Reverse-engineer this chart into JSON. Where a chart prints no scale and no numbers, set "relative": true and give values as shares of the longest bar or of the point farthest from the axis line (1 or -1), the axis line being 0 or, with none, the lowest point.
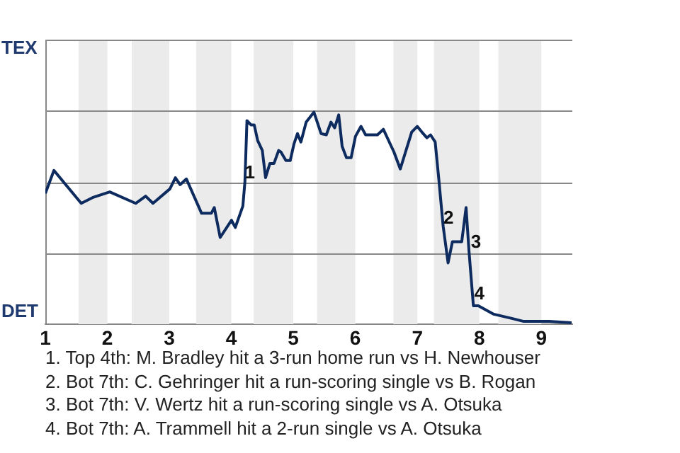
{
  "chart_data": {
    "type": "line",
    "relative": true,
    "x": [
      1,
      1.139,
      1.579,
      1.761,
      2.039,
      2.457,
      2.618,
      2.736,
      3.009,
      3.098,
      3.173,
      3.275,
      3.52,
      3.677,
      3.725,
      3.82,
      4.003,
      4.064,
      4.186,
      4.219,
      4.252,
      4.317,
      4.369,
      4.425,
      4.5,
      4.552,
      4.622,
      4.688,
      4.763,
      4.8,
      4.88,
      4.95,
      5.012,
      5.067,
      5.122,
      5.207,
      5.332,
      5.447,
      5.532,
      5.607,
      5.667,
      5.732,
      5.787,
      5.857,
      5.932,
      6.002,
      6.091,
      6.166,
      6.357,
      6.452,
      6.623,
      6.725,
      6.909,
      6.998,
      7.073,
      7.154,
      7.213,
      7.288,
      7.346,
      7.416,
      7.496,
      7.566,
      7.716,
      7.786,
      7.834,
      7.904,
      7.984,
      8.233,
      8.525,
      8.717,
      9.125,
      9.488
    ],
    "series": [
      {
        "color": "#0d2b5e",
        "values": [
          0.617,
          0.725,
          0.57,
          0.597,
          0.624,
          0.57,
          0.604,
          0.57,
          0.638,
          0.691,
          0.658,
          0.685,
          0.523,
          0.523,
          0.55,
          0.409,
          0.49,
          0.456,
          0.557,
          0.671,
          0.96,
          0.94,
          0.94,
          0.866,
          0.819,
          0.691,
          0.758,
          0.758,
          0.819,
          0.812,
          0.772,
          0.772,
          0.852,
          0.899,
          0.859,
          0.953,
          1,
          0.899,
          0.893,
          0.953,
          0.926,
          0.987,
          0.839,
          0.785,
          0.785,
          0.886,
          0.933,
          0.893,
          0.893,
          0.919,
          0.812,
          0.732,
          0.906,
          0.933,
          0.906,
          0.879,
          0.893,
          0.859,
          0.685,
          0.463,
          0.289,
          0.389,
          0.389,
          0.55,
          0.342,
          0.087,
          0.087,
          0.047,
          0.027,
          0.013,
          0.013,
          0.007
        ]
      }
    ],
    "xlim": [
      1,
      9.5
    ],
    "xticks": [
      1,
      2,
      3,
      4,
      5,
      6,
      7,
      8,
      9
    ],
    "grid": false,
    "marker": "none",
    "line_style": "solid",
    "legend": false,
    "ref_lines": [
      {
        "axis": "y",
        "value": 0.336,
        "color": "#888888"
      },
      {
        "axis": "y",
        "value": 0.671,
        "color": "#888888"
      },
      {
        "axis": "y",
        "value": 1.007,
        "color": "#888888"
      },
      {
        "axis": "y",
        "value": 1.342,
        "color": "#888888"
      }
    ],
    "bands": [
      {
        "axis": "x",
        "from": 1.536,
        "to": 2,
        "color": "#ebebeb"
      },
      {
        "axis": "x",
        "from": 2.393,
        "to": 3,
        "color": "#ebebeb"
      },
      {
        "axis": "x",
        "from": 3.432,
        "to": 4,
        "color": "#ebebeb"
      },
      {
        "axis": "x",
        "from": 4.359,
        "to": 5,
        "color": "#ebebeb"
      },
      {
        "axis": "x",
        "from": 5.383,
        "to": 6,
        "color": "#ebebeb"
      },
      {
        "axis": "x",
        "from": 6.614,
        "to": 7,
        "color": "#ebebeb"
      },
      {
        "axis": "x",
        "from": 7.268,
        "to": 8,
        "color": "#ebebeb"
      },
      {
        "axis": "x",
        "from": 8.306,
        "to": 9,
        "color": "#ebebeb"
      }
    ],
    "annotations": [
      {
        "text": "1",
        "x": 4.298,
        "y": 0.711
      },
      {
        "text": "2",
        "x": 7.502,
        "y": 0.497
      },
      {
        "text": "3",
        "x": 7.946,
        "y": 0.383
      },
      {
        "text": "4",
        "x": 8.0,
        "y": 0.141
      },
      "TEX",
      "DET",
      "1. Top 4th: M. Bradley hit a 3-run home run vs H. Newhouser",
      "2. Bot 7th: C. Gehringer hit a run-scoring single vs B. Rogan",
      "3. Bot 7th: V. Wertz hit a run-scoring single vs A. Otsuka",
      "4. Bot 7th: A. Trammell hit a 2-run single vs A. Otsuka"
    ]
  }
}
